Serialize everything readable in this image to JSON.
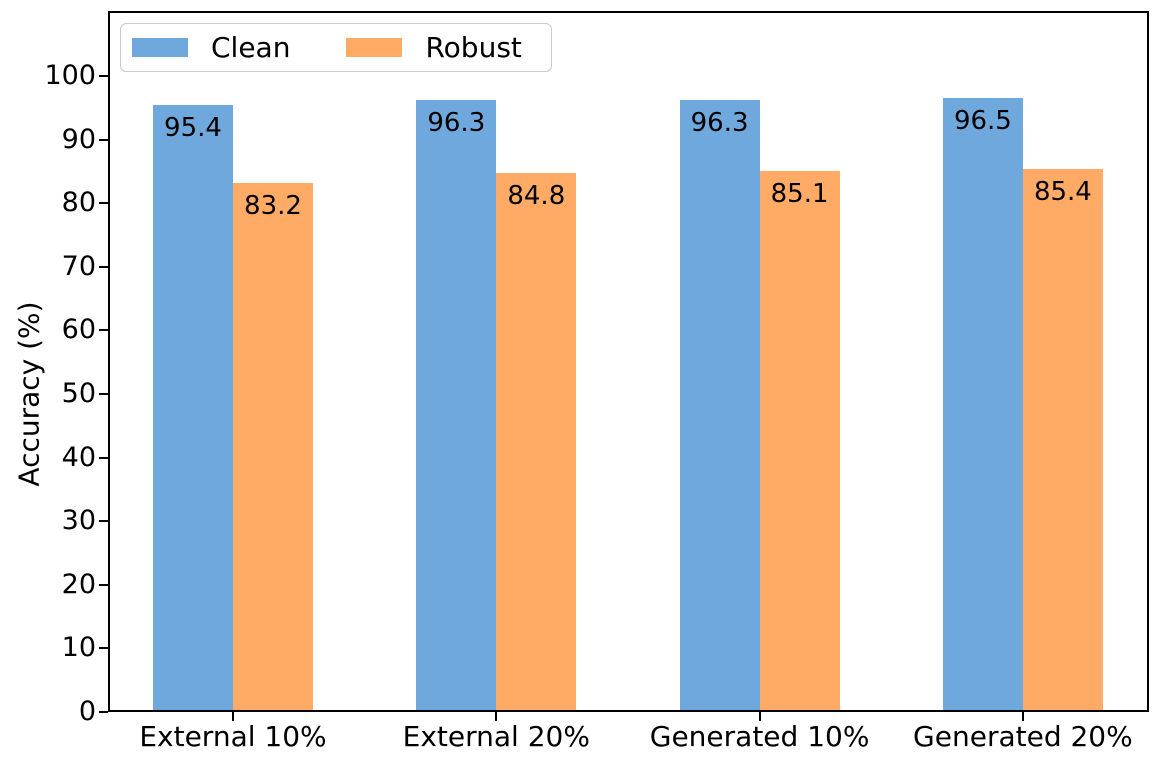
{
  "chart_data": {
    "type": "bar",
    "title": "",
    "xlabel": "",
    "ylabel": "Accuracy (%)",
    "categories": [
      "External 10%",
      "External 20%",
      "Generated 10%",
      "Generated 20%"
    ],
    "series": [
      {
        "name": "Clean",
        "color": "#6fa8dc",
        "values": [
          95.4,
          96.3,
          96.3,
          96.5
        ]
      },
      {
        "name": "Robust",
        "color": "#ffab66",
        "values": [
          83.2,
          84.8,
          85.1,
          85.4
        ]
      }
    ],
    "bar_value_labels": {
      "Clean": [
        "95.4",
        "96.3",
        "96.3",
        "96.5"
      ],
      "Robust": [
        "83.2",
        "84.8",
        "85.1",
        "85.4"
      ]
    },
    "ylim": [
      0,
      110.2
    ],
    "yticks": [
      "0",
      "10",
      "20",
      "30",
      "40",
      "50",
      "60",
      "70",
      "80",
      "90",
      "100"
    ],
    "grid": false,
    "legend_position": "upper left"
  },
  "colors": {
    "axis": "#000000",
    "text": "#000000",
    "background": "#ffffff",
    "legend_border": "#cccccc",
    "clean_bar": "#6fa8dc",
    "robust_bar": "#ffab66"
  }
}
